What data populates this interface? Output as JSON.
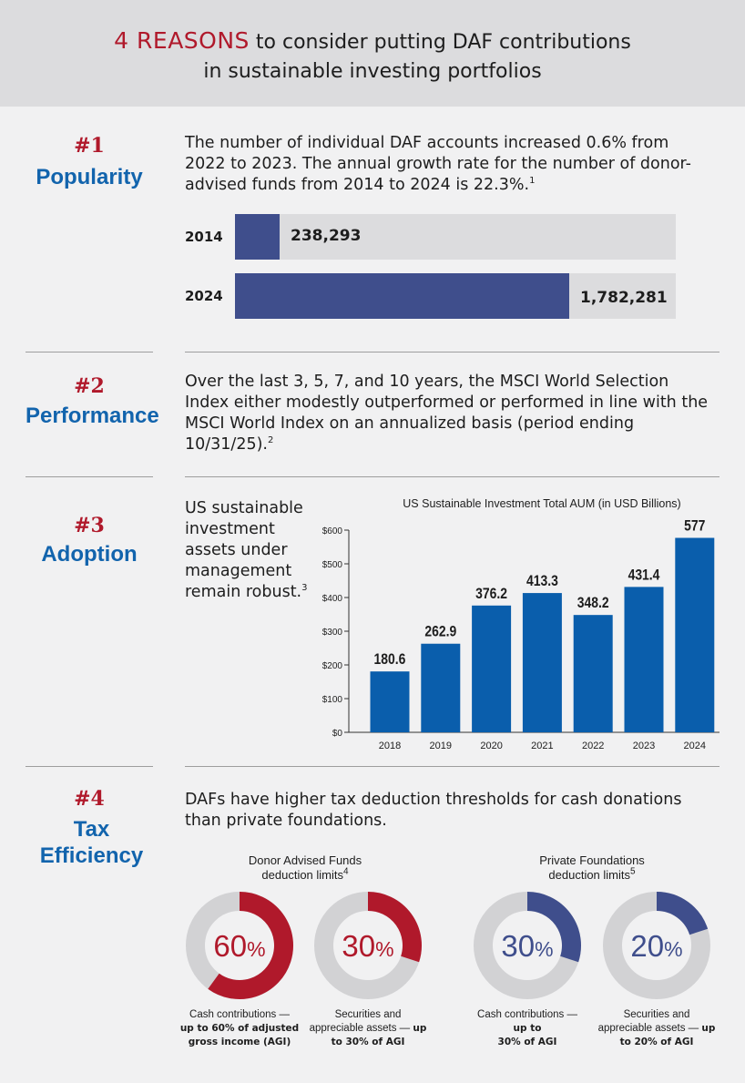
{
  "header": {
    "accent": "4 REASONS",
    "line1_rest": " to consider putting DAF contributions",
    "line2": "in sustainable investing portfolios"
  },
  "reason1": {
    "number": "#1",
    "title": "Popularity",
    "text": "The number of individual DAF accounts increased 0.6% from 2022 to 2023. The annual growth rate for the number of donor-advised funds from 2014 to 2024 is 22.3%.",
    "footnote": "1",
    "bars": [
      {
        "year": "2014",
        "value": 238293,
        "label": "238,293"
      },
      {
        "year": "2024",
        "value": 1782281,
        "label": "1,782,281"
      }
    ],
    "bar_max": 2350000
  },
  "reason2": {
    "number": "#2",
    "title": "Performance",
    "text": "Over the last 3, 5, 7, and 10 years, the MSCI World Selection Index either modestly outperformed or performed in line with the MSCI World Index on an annualized basis (period ending 10/31/25).",
    "footnote": "2"
  },
  "reason3": {
    "number": "#3",
    "title": "Adoption",
    "text": "US sustainable investment assets under management remain robust.",
    "footnote": "3"
  },
  "chart_data": {
    "type": "bar",
    "title": "US Sustainable Investment Total AUM (in USD Billions)",
    "categories": [
      "2018",
      "2019",
      "2020",
      "2021",
      "2022",
      "2023",
      "2024"
    ],
    "values": [
      180.6,
      262.9,
      376.2,
      413.3,
      348.2,
      431.4,
      577
    ],
    "value_labels": [
      "180.6",
      "262.9",
      "376.2",
      "413.3",
      "348.2",
      "431.4",
      "577"
    ],
    "ylim": [
      0,
      600
    ],
    "yticks": [
      0,
      100,
      200,
      300,
      400,
      500,
      600
    ],
    "ytick_labels": [
      "$0",
      "$100",
      "$200",
      "$300",
      "$400",
      "$500",
      "$600"
    ],
    "xlabel": "",
    "ylabel": "",
    "bar_color": "#0a5eac"
  },
  "reason4": {
    "number": "#4",
    "title_line1": "Tax",
    "title_line2": "Efficiency",
    "text": "DAFs have higher tax deduction thresholds for cash donations than private foundations.",
    "groups": [
      {
        "title_line1": "Donor Advised Funds",
        "title_line2": "deduction limits",
        "footnote": "4"
      },
      {
        "title_line1": "Private Foundations",
        "title_line2": "deduction limits",
        "footnote": "5"
      }
    ],
    "donuts": [
      {
        "percent": 60,
        "label_num": "60",
        "label_pct": "%",
        "color": "#b0192b",
        "caption_plain": "Cash contributions —",
        "caption_bold1": "up to 60% of adjusted",
        "caption_bold2": "gross income (AGI)"
      },
      {
        "percent": 30,
        "label_num": "30",
        "label_pct": "%",
        "color": "#b0192b",
        "caption_plain": "Securities and",
        "caption_mixed_plain": "appreciable assets — ",
        "caption_mixed_bold": "up",
        "caption_bold2": "to 30% of AGI"
      },
      {
        "percent": 30,
        "label_num": "30",
        "label_pct": "%",
        "color": "#3f4e8c",
        "caption_plain": "Cash contributions —",
        "caption_bold1": "up to",
        "caption_bold2": "30% of AGI"
      },
      {
        "percent": 20,
        "label_num": "20",
        "label_pct": "%",
        "color": "#3f4e8c",
        "caption_plain": "Securities and",
        "caption_mixed_plain": "appreciable assets — ",
        "caption_mixed_bold": "up",
        "caption_bold2": "to 20% of AGI"
      }
    ],
    "track_color": "#d2d2d4"
  }
}
